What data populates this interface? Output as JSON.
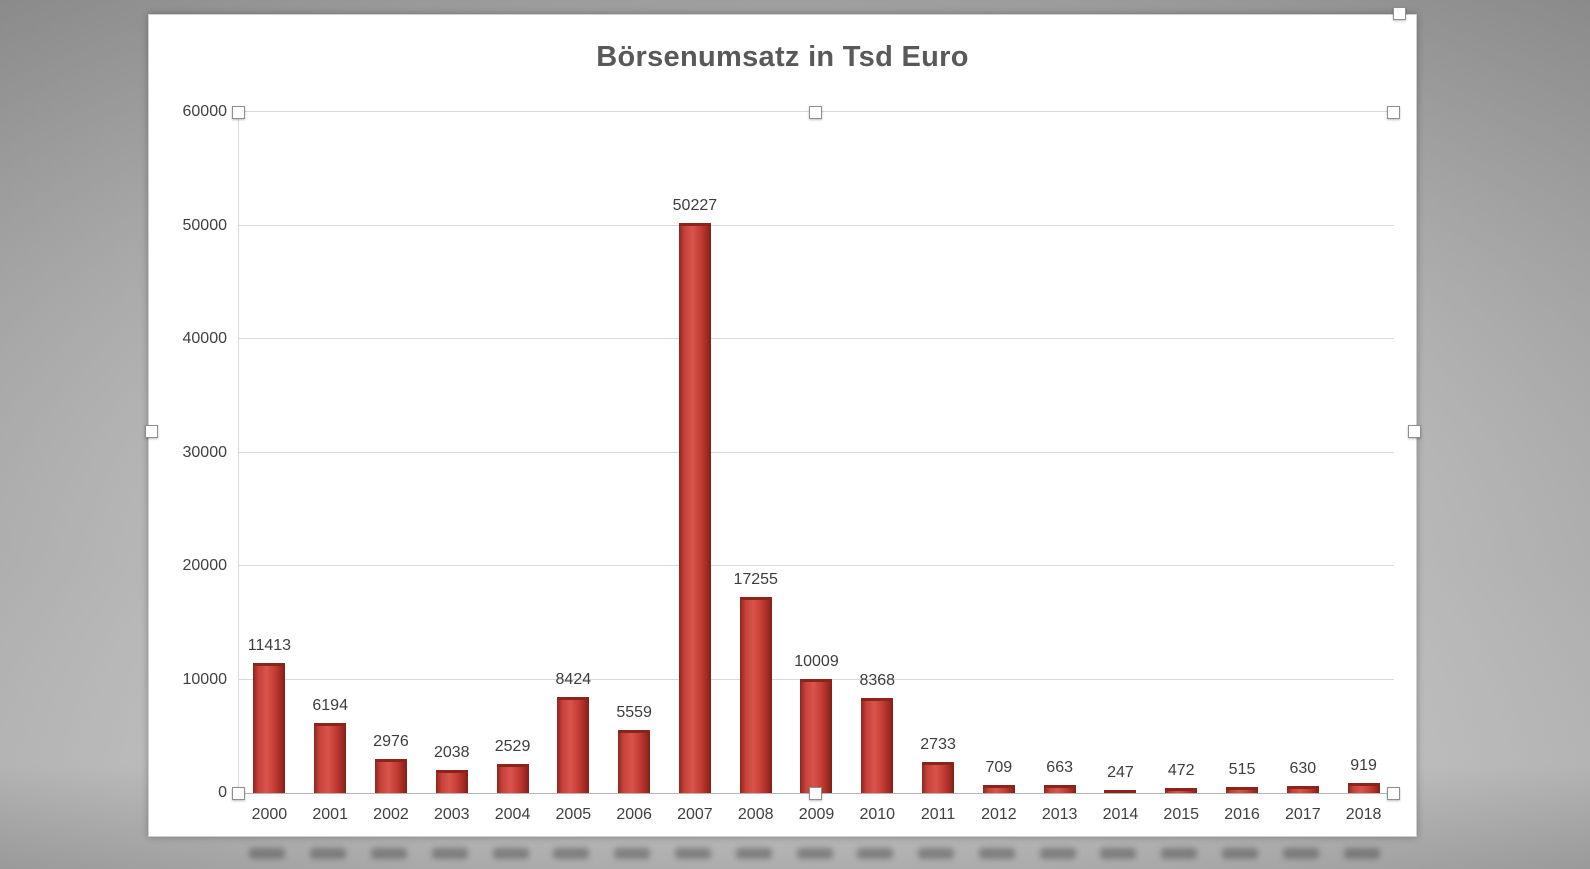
{
  "chart_data": {
    "type": "bar",
    "title": "Börsenumsatz in Tsd Euro",
    "categories": [
      "2000",
      "2001",
      "2002",
      "2003",
      "2004",
      "2005",
      "2006",
      "2007",
      "2008",
      "2009",
      "2010",
      "2011",
      "2012",
      "2013",
      "2014",
      "2015",
      "2016",
      "2017",
      "2018"
    ],
    "values": [
      11413,
      6194,
      2976,
      2038,
      2529,
      8424,
      5559,
      50227,
      17255,
      10009,
      8368,
      2733,
      709,
      663,
      247,
      472,
      515,
      630,
      919
    ],
    "ylim": [
      0,
      60000
    ],
    "ytick_step": 10000,
    "yticks": [
      "0",
      "10000",
      "20000",
      "30000",
      "40000",
      "50000",
      "60000"
    ],
    "xlabel": "",
    "ylabel": "",
    "grid": true,
    "legend": "none",
    "bar_color": "#c0392b",
    "title_color": "#595959"
  }
}
